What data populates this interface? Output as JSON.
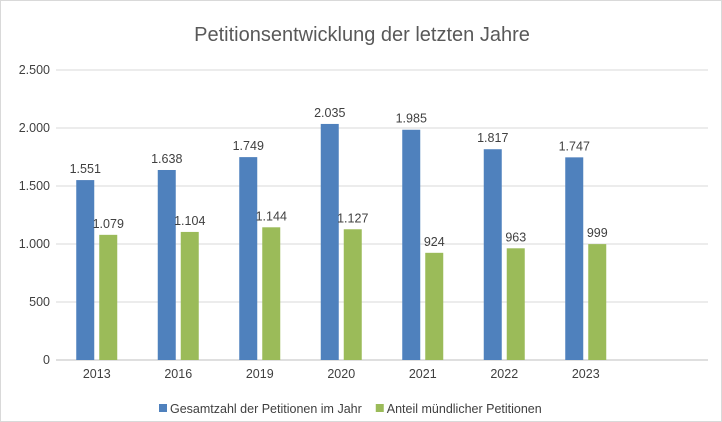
{
  "chart_data": {
    "type": "bar",
    "title": "Petitionsentwicklung der letzten Jahre",
    "xlabel": "",
    "ylabel": "",
    "categories": [
      "2013",
      "2016",
      "2019",
      "2020",
      "2021",
      "2022",
      "2023"
    ],
    "series": [
      {
        "name": "Gesamtzahl der Petitionen im Jahr",
        "color": "#4f81bd",
        "values": [
          1551,
          1638,
          1749,
          2035,
          1985,
          1817,
          1747
        ],
        "labels": [
          "1.551",
          "1.638",
          "1.749",
          "2.035",
          "1.985",
          "1.817",
          "1.747"
        ]
      },
      {
        "name": "Anteil mündlicher Petitionen",
        "color": "#9bbb59",
        "values": [
          1079,
          1104,
          1144,
          1127,
          924,
          963,
          999
        ],
        "labels": [
          "1.079",
          "1.104",
          "1.144",
          "1.127",
          "924",
          "963",
          "999"
        ]
      }
    ],
    "ylim": [
      0,
      2500
    ],
    "yticks": [
      0,
      500,
      1000,
      1500,
      2000,
      2500
    ],
    "ytick_labels": [
      "0",
      "500",
      "1.000",
      "1.500",
      "2.000",
      "2.500"
    ],
    "grid": true,
    "legend": "bottom"
  }
}
